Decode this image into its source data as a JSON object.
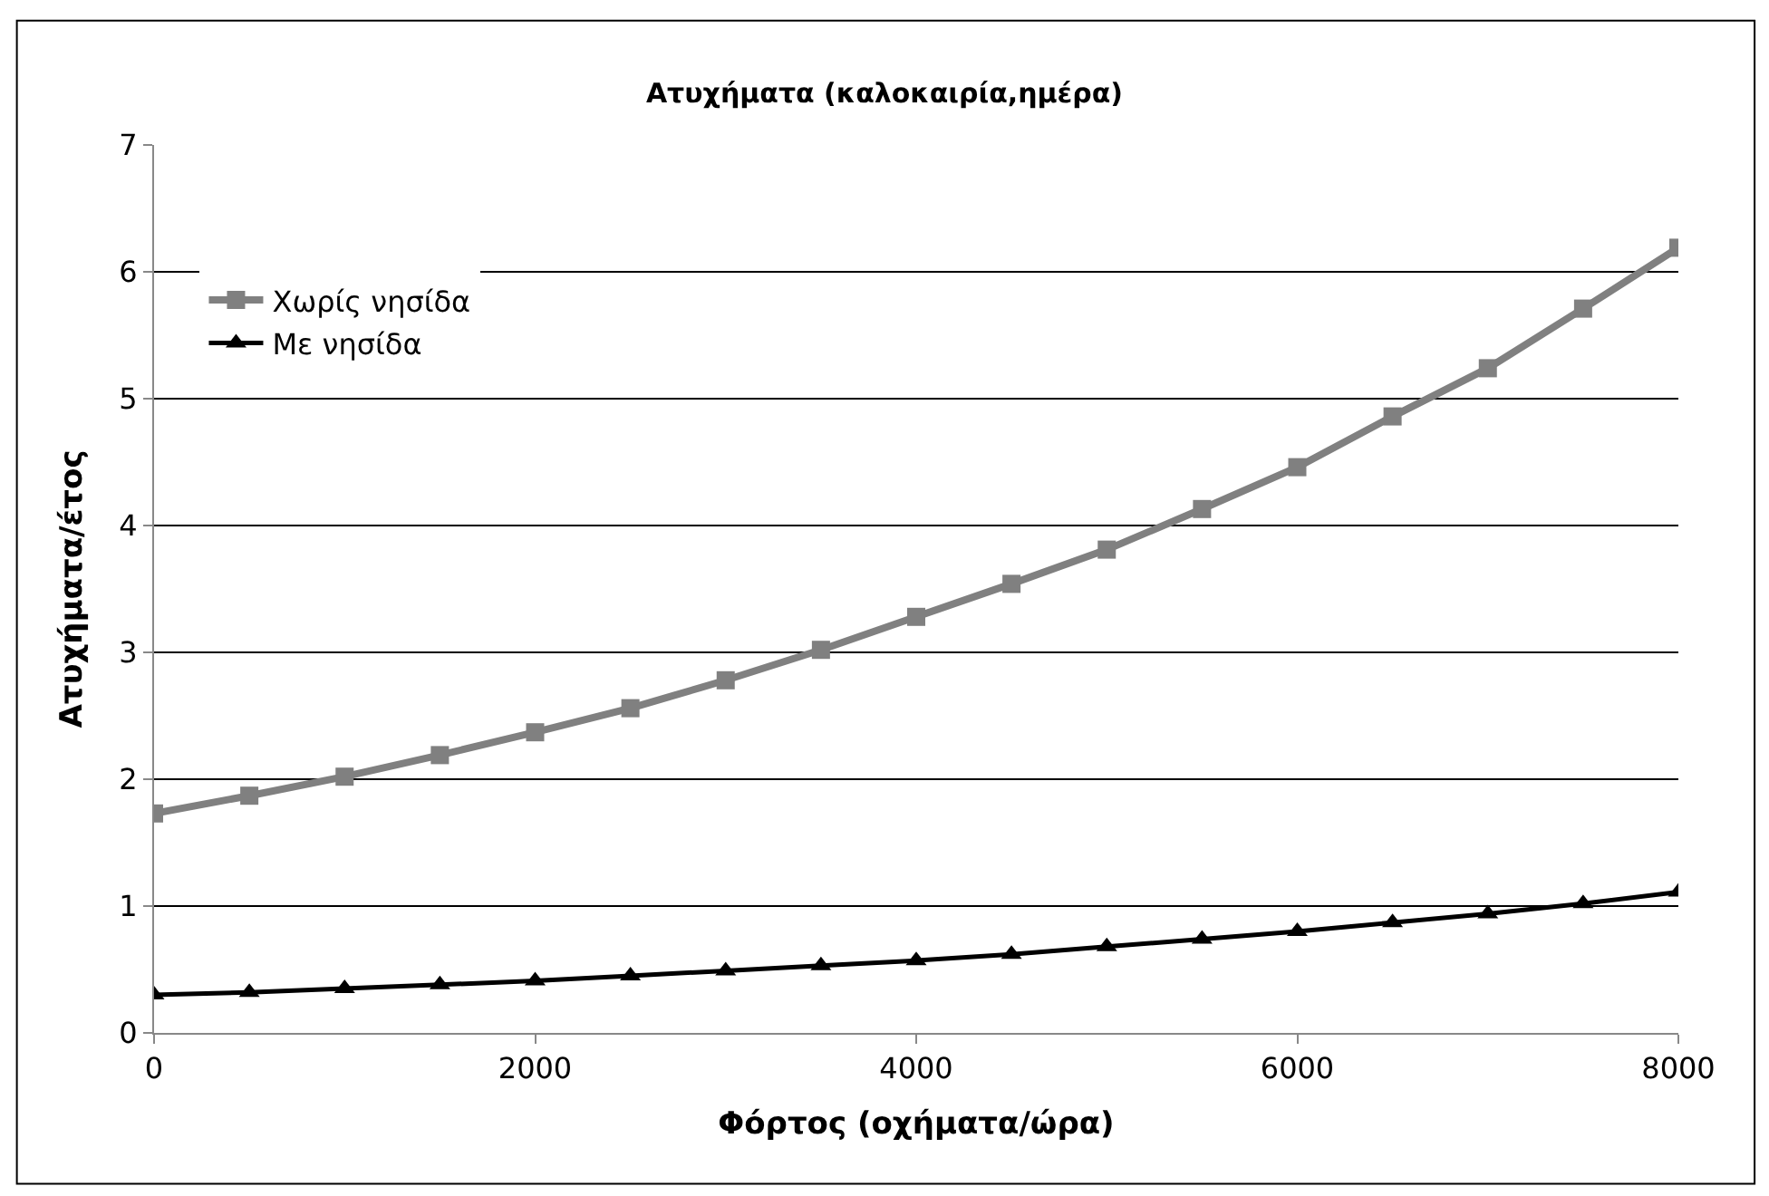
{
  "chart_data": {
    "type": "line",
    "title": "Ατυχήματα (καλοκαιρία,ημέρα)",
    "xlabel": "Φόρτος (οχήματα/ώρα)",
    "ylabel": "Ατυχήματα/έτος",
    "x": [
      0,
      500,
      1000,
      1500,
      2000,
      2500,
      3000,
      3500,
      4000,
      4500,
      5000,
      5500,
      6000,
      6500,
      7000,
      7500,
      8000
    ],
    "series": [
      {
        "name": "Χωρίς νησίδα",
        "color": "#808080",
        "marker": "square",
        "values": [
          1.73,
          1.87,
          2.02,
          2.19,
          2.37,
          2.56,
          2.78,
          3.02,
          3.28,
          3.54,
          3.81,
          4.13,
          4.46,
          4.86,
          5.24,
          5.71,
          6.19
        ]
      },
      {
        "name": "Με νησίδα",
        "color": "#000000",
        "marker": "triangle",
        "values": [
          0.3,
          0.32,
          0.35,
          0.38,
          0.41,
          0.45,
          0.49,
          0.53,
          0.57,
          0.62,
          0.68,
          0.74,
          0.8,
          0.87,
          0.94,
          1.02,
          1.11
        ]
      }
    ],
    "xlim": [
      0,
      8000
    ],
    "xticks": [
      0,
      2000,
      4000,
      6000,
      8000
    ],
    "ylim": [
      0,
      7
    ],
    "yticks": [
      0,
      1,
      2,
      3,
      4,
      5,
      6,
      7
    ],
    "grid": "y",
    "legend": "top left",
    "line_style": "solid"
  }
}
